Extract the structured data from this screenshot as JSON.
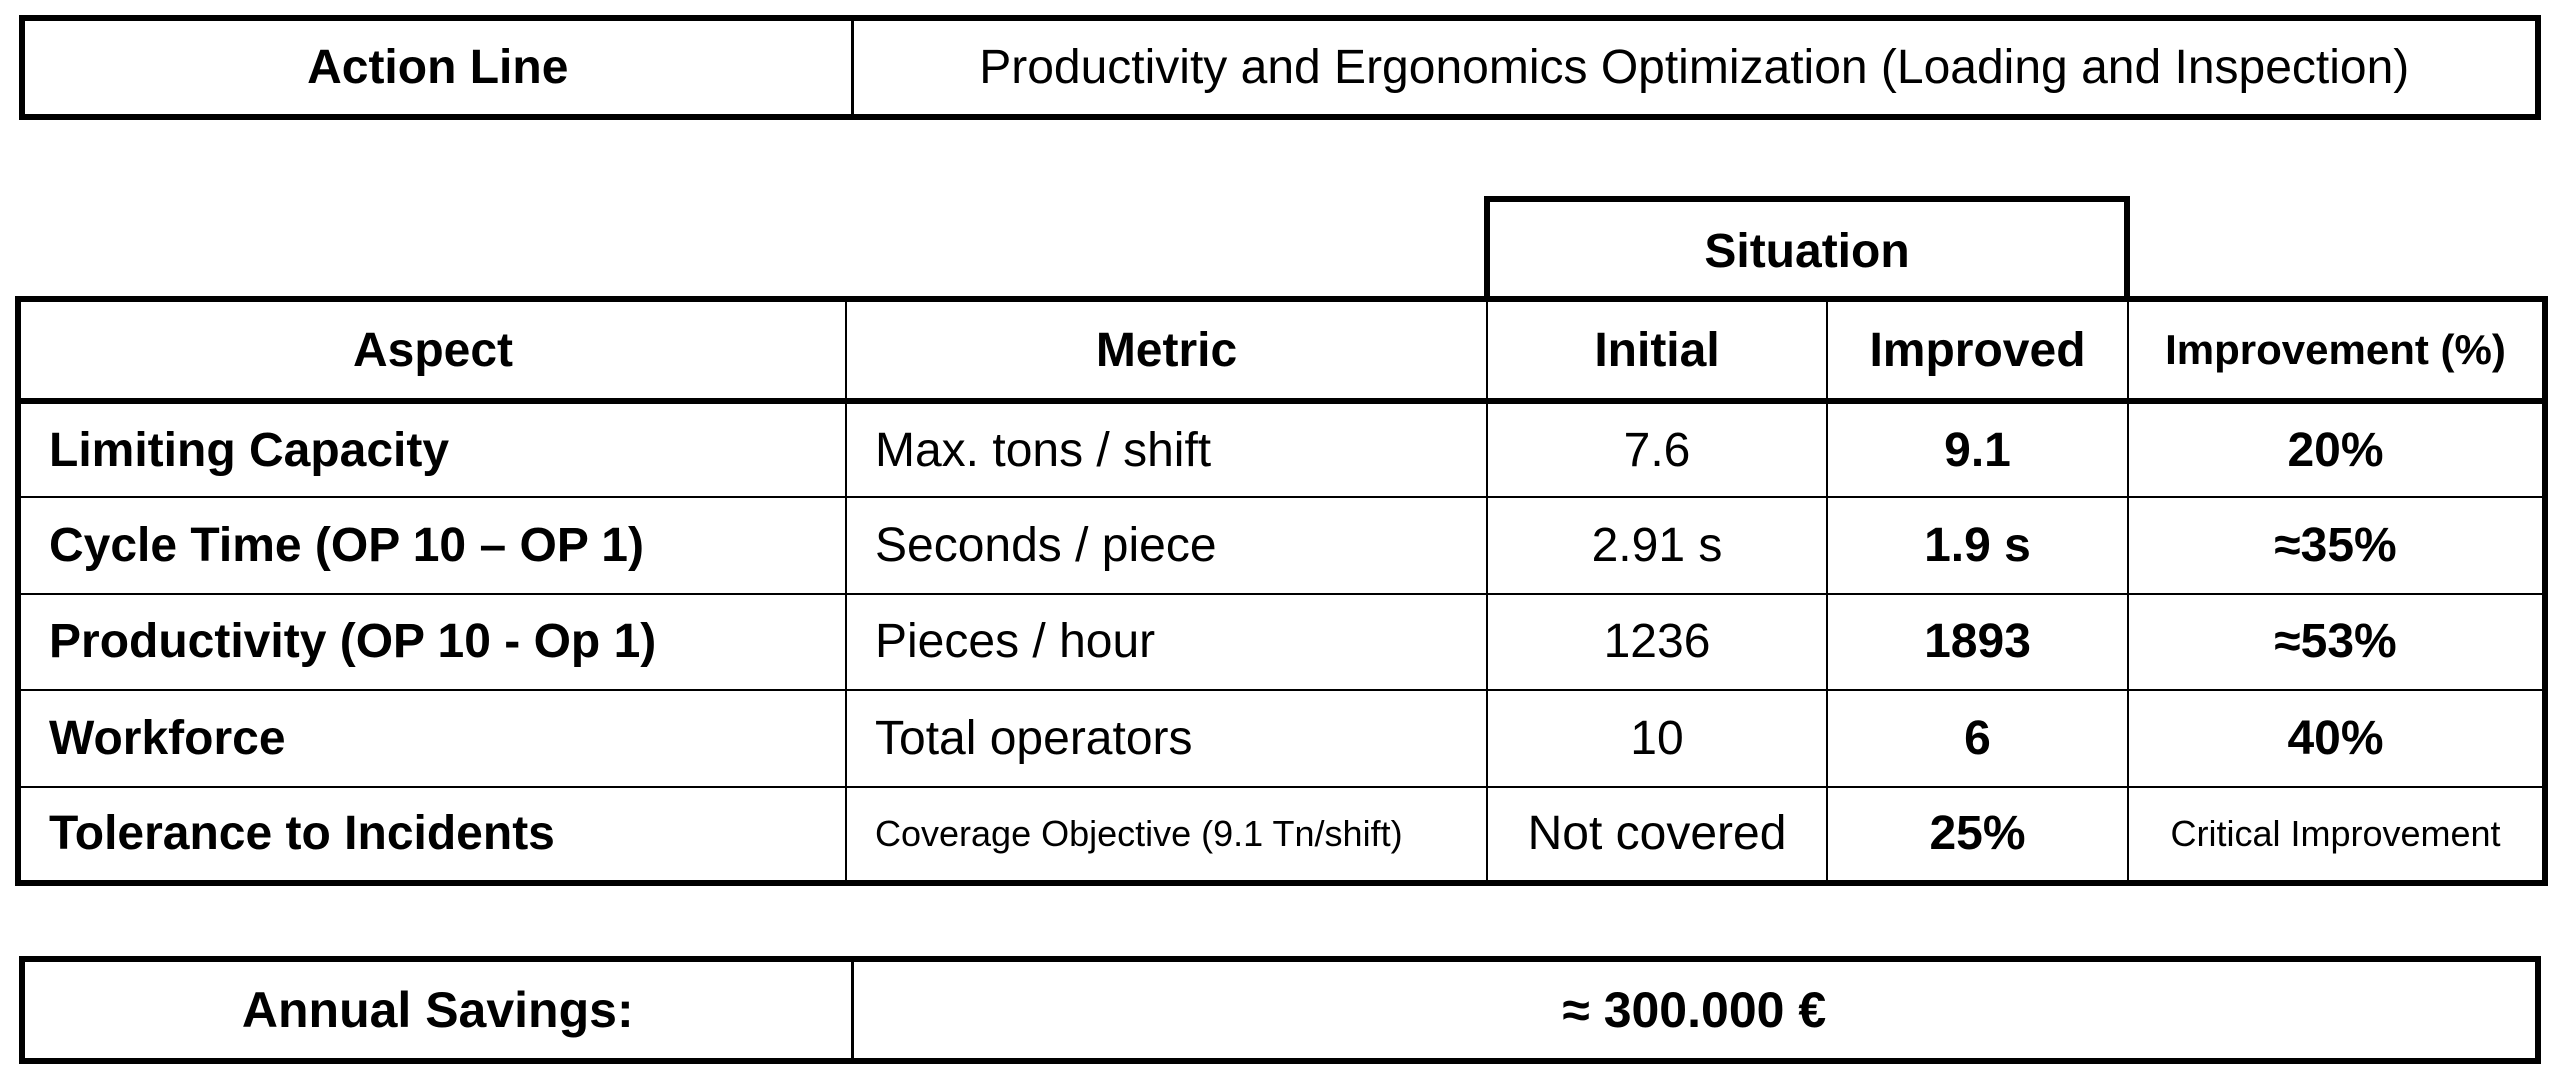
{
  "action": {
    "label": "Action Line",
    "value": "Productivity and Ergonomics Optimization (Loading and Inspection)"
  },
  "situation_header": "Situation",
  "table": {
    "headers": {
      "aspect": "Aspect",
      "metric": "Metric",
      "initial": "Initial",
      "improved": "Improved",
      "improvement": "Improvement (%)"
    },
    "rows": [
      {
        "aspect": "Limiting Capacity",
        "metric": "Max. tons / shift",
        "initial": "7.6",
        "improved": "9.1",
        "improvement": "20%"
      },
      {
        "aspect": "Cycle Time (OP 10 – OP 1)",
        "metric": "Seconds / piece",
        "initial": "2.91 s",
        "improved": "1.9 s",
        "improvement": "≈35%"
      },
      {
        "aspect": "Productivity (OP 10 - Op 1)",
        "metric": "Pieces / hour",
        "initial": "1236",
        "improved": "1893",
        "improvement": "≈53%"
      },
      {
        "aspect": "Workforce",
        "metric": "Total operators",
        "initial": "10",
        "improved": "6",
        "improvement": "40%"
      },
      {
        "aspect": "Tolerance to Incidents",
        "metric": "Coverage Objective (9.1 Tn/shift)",
        "initial": "Not covered",
        "improved": "25%",
        "improvement": "Critical Improvement"
      }
    ]
  },
  "savings": {
    "label": "Annual Savings:",
    "value": "≈ 300.000 €"
  }
}
